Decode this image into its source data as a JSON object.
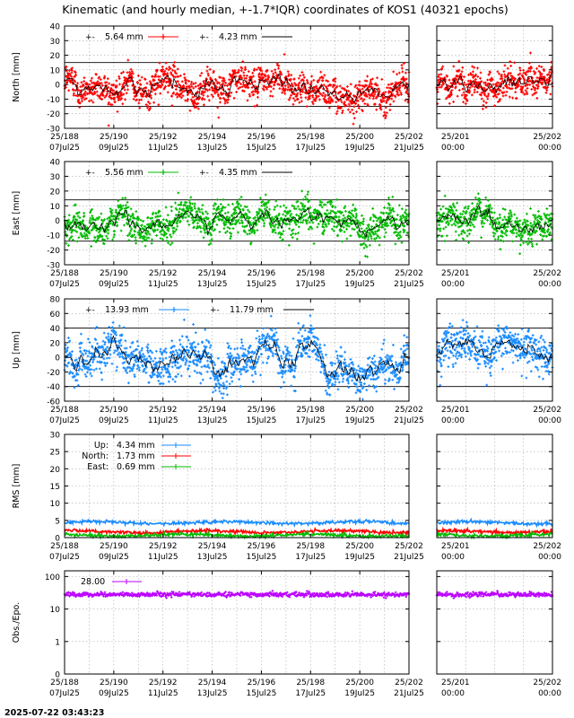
{
  "title": "Kinematic (and hourly median, +-1.7*IQR) coordinates of KOS1 (40321 epochs)",
  "footer_timestamp": "2025-07-22 03:43:23",
  "x_ticks_main": [
    {
      "top": "25/188",
      "bottom": "07Jul25"
    },
    {
      "top": "25/190",
      "bottom": "09Jul25"
    },
    {
      "top": "25/192",
      "bottom": "11Jul25"
    },
    {
      "top": "25/194",
      "bottom": "13Jul25"
    },
    {
      "top": "25/196",
      "bottom": "15Jul25"
    },
    {
      "top": "25/198",
      "bottom": "17Jul25"
    },
    {
      "top": "25/200",
      "bottom": "19Jul25"
    },
    {
      "top": "25/202",
      "bottom": "21Jul25"
    }
  ],
  "x_ticks_zoom": [
    {
      "top": "25/201",
      "bottom": "00:00"
    },
    {
      "top": "25/202",
      "bottom": "00:00"
    }
  ],
  "colors": {
    "north": "#ff0000",
    "east": "#00bb00",
    "up": "#1a8cff",
    "obs": "#bb00ff",
    "median": "#000000"
  },
  "chart_data": [
    {
      "type": "scatter",
      "id": "north",
      "ylabel": "North [mm]",
      "ylim": [
        -30,
        40
      ],
      "yticks": [
        -30,
        -20,
        -10,
        0,
        10,
        20,
        30,
        40
      ],
      "y_tick_labels": [
        "-30",
        "-20",
        "-10",
        "0",
        "10",
        "20",
        "30",
        "40"
      ],
      "iqr_band": [
        -15,
        15
      ],
      "legend": [
        {
          "label": "5.64 mm",
          "series": "kinematic"
        },
        {
          "label": "4.23 mm",
          "series": "median"
        }
      ],
      "grid": true,
      "series": [
        {
          "name": "kinematic",
          "color": "#ff0000",
          "spread": 5.64
        },
        {
          "name": "median",
          "color": "#000000",
          "spread": 4.23
        }
      ]
    },
    {
      "type": "scatter",
      "id": "east",
      "ylabel": "East [mm]",
      "ylim": [
        -30,
        40
      ],
      "yticks": [
        -30,
        -20,
        -10,
        0,
        10,
        20,
        30,
        40
      ],
      "y_tick_labels": [
        "-30",
        "-20",
        "-10",
        "0",
        "10",
        "20",
        "30",
        "40"
      ],
      "iqr_band": [
        -14,
        14
      ],
      "legend": [
        {
          "label": "5.56 mm",
          "series": "kinematic"
        },
        {
          "label": "4.35 mm",
          "series": "median"
        }
      ],
      "grid": true,
      "series": [
        {
          "name": "kinematic",
          "color": "#00bb00",
          "spread": 5.56
        },
        {
          "name": "median",
          "color": "#000000",
          "spread": 4.35
        }
      ]
    },
    {
      "type": "scatter",
      "id": "up",
      "ylabel": "Up [mm]",
      "ylim": [
        -60,
        80
      ],
      "yticks": [
        -60,
        -40,
        -20,
        0,
        20,
        40,
        60,
        80
      ],
      "y_tick_labels": [
        "-60",
        "-40",
        "-20",
        "0",
        "20",
        "40",
        "60",
        "80"
      ],
      "iqr_band": [
        -40,
        40
      ],
      "legend": [
        {
          "label": "13.93 mm",
          "series": "kinematic"
        },
        {
          "label": "11.79 mm",
          "series": "median"
        }
      ],
      "grid": true,
      "series": [
        {
          "name": "kinematic",
          "color": "#1a8cff",
          "spread": 13.93
        },
        {
          "name": "median",
          "color": "#000000",
          "spread": 11.79
        }
      ]
    },
    {
      "type": "line",
      "id": "rms",
      "ylabel": "RMS [mm]",
      "ylim": [
        0,
        30
      ],
      "yticks": [
        0,
        5,
        10,
        15,
        20,
        25,
        30
      ],
      "y_tick_labels": [
        "0",
        "5",
        "10",
        "15",
        "20",
        "25",
        "30"
      ],
      "grid": true,
      "series": [
        {
          "name": "Up:",
          "value_label": "4.34 mm",
          "value": 4.34,
          "color": "#1a8cff"
        },
        {
          "name": "North:",
          "value_label": "1.73 mm",
          "value": 1.73,
          "color": "#ff0000"
        },
        {
          "name": "East:",
          "value_label": "0.69 mm",
          "value": 0.69,
          "color": "#00bb00"
        }
      ]
    },
    {
      "type": "scatter",
      "id": "obs",
      "ylabel": "Obs./Epo.",
      "yscale": "log",
      "ylim": [
        0.1,
        150
      ],
      "yticks": [
        0.1,
        1,
        10,
        100
      ],
      "y_tick_labels": [
        "0",
        "1",
        "10",
        "100"
      ],
      "grid": true,
      "legend": [
        {
          "label": "28.00",
          "series": "obs"
        }
      ],
      "series": [
        {
          "name": "obs",
          "color": "#bb00ff",
          "value": 28.0
        }
      ]
    }
  ]
}
